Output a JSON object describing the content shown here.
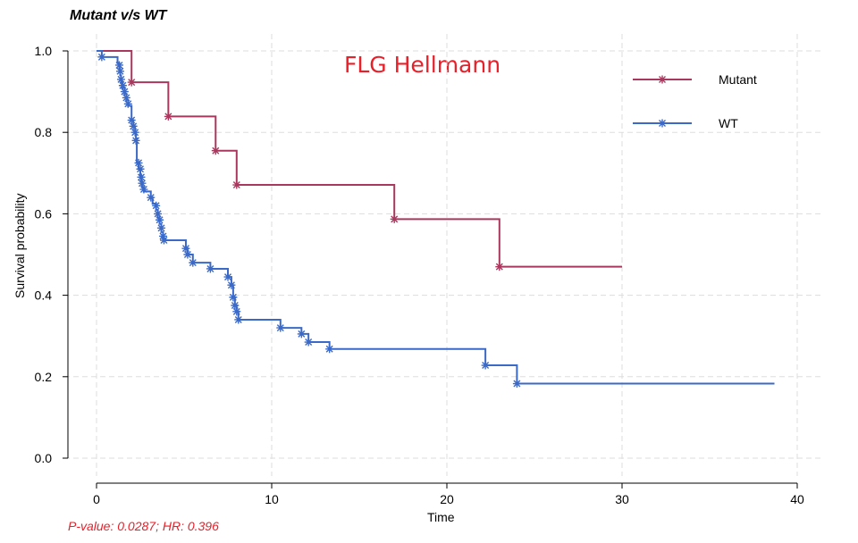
{
  "chart_data": {
    "type": "line",
    "title": "Mutant v/s WT",
    "annotation": "FLG Hellmann",
    "footnote": "P-value: 0.0287; HR: 0.396",
    "xlabel": "Time",
    "ylabel": "Survival probability",
    "xlim": [
      0,
      40
    ],
    "ylim": [
      0,
      1
    ],
    "xticks": [
      0,
      10,
      20,
      30,
      40
    ],
    "yticks": [
      0.0,
      0.2,
      0.4,
      0.6,
      0.8,
      1.0
    ],
    "grid": true,
    "legend_position": "top-right",
    "series": [
      {
        "name": "Mutant",
        "color": "#a8385e",
        "steps": [
          [
            0,
            1.0
          ],
          [
            2.0,
            0.923
          ],
          [
            4.1,
            0.839
          ],
          [
            6.8,
            0.755
          ],
          [
            8.0,
            0.671
          ],
          [
            17.0,
            0.587
          ],
          [
            23.0,
            0.47
          ]
        ],
        "end_x": 30.0,
        "censored": [
          [
            2.0,
            0.923
          ],
          [
            4.1,
            0.839
          ],
          [
            6.8,
            0.755
          ],
          [
            8.0,
            0.671
          ],
          [
            17.0,
            0.587
          ],
          [
            23.0,
            0.47
          ]
        ]
      },
      {
        "name": "WT",
        "color": "#3a69c8",
        "steps": [
          [
            0,
            1.0
          ],
          [
            0.3,
            0.985
          ],
          [
            1.2,
            0.97
          ],
          [
            1.3,
            0.955
          ],
          [
            1.35,
            0.94
          ],
          [
            1.4,
            0.925
          ],
          [
            1.45,
            0.91
          ],
          [
            1.6,
            0.895
          ],
          [
            1.7,
            0.88
          ],
          [
            1.8,
            0.865
          ],
          [
            2.0,
            0.83
          ],
          [
            2.1,
            0.815
          ],
          [
            2.2,
            0.8
          ],
          [
            2.25,
            0.785
          ],
          [
            2.3,
            0.725
          ],
          [
            2.4,
            0.71
          ],
          [
            2.5,
            0.695
          ],
          [
            2.55,
            0.68
          ],
          [
            2.6,
            0.665
          ],
          [
            2.7,
            0.655
          ],
          [
            3.1,
            0.64
          ],
          [
            3.2,
            0.625
          ],
          [
            3.4,
            0.61
          ],
          [
            3.5,
            0.59
          ],
          [
            3.6,
            0.575
          ],
          [
            3.7,
            0.555
          ],
          [
            3.8,
            0.535
          ],
          [
            5.1,
            0.515
          ],
          [
            5.2,
            0.5
          ],
          [
            5.5,
            0.48
          ],
          [
            6.5,
            0.465
          ],
          [
            7.5,
            0.445
          ],
          [
            7.7,
            0.425
          ],
          [
            7.8,
            0.395
          ],
          [
            7.9,
            0.375
          ],
          [
            8.0,
            0.36
          ],
          [
            8.1,
            0.34
          ],
          [
            10.5,
            0.32
          ],
          [
            11.7,
            0.305
          ],
          [
            12.1,
            0.285
          ],
          [
            13.3,
            0.268
          ],
          [
            22.2,
            0.228
          ],
          [
            24.0,
            0.183
          ]
        ],
        "end_x": 38.7,
        "censored": [
          [
            0.3,
            0.985
          ],
          [
            1.3,
            0.965
          ],
          [
            1.35,
            0.95
          ],
          [
            1.4,
            0.93
          ],
          [
            1.5,
            0.915
          ],
          [
            1.6,
            0.9
          ],
          [
            1.7,
            0.885
          ],
          [
            1.8,
            0.87
          ],
          [
            2.0,
            0.83
          ],
          [
            2.1,
            0.815
          ],
          [
            2.2,
            0.8
          ],
          [
            2.25,
            0.78
          ],
          [
            2.4,
            0.725
          ],
          [
            2.5,
            0.71
          ],
          [
            2.55,
            0.69
          ],
          [
            2.6,
            0.675
          ],
          [
            2.7,
            0.66
          ],
          [
            3.1,
            0.64
          ],
          [
            3.4,
            0.62
          ],
          [
            3.5,
            0.6
          ],
          [
            3.6,
            0.585
          ],
          [
            3.7,
            0.565
          ],
          [
            3.8,
            0.545
          ],
          [
            3.85,
            0.535
          ],
          [
            5.1,
            0.515
          ],
          [
            5.2,
            0.5
          ],
          [
            5.5,
            0.48
          ],
          [
            6.5,
            0.465
          ],
          [
            7.5,
            0.445
          ],
          [
            7.7,
            0.425
          ],
          [
            7.8,
            0.395
          ],
          [
            7.9,
            0.375
          ],
          [
            8.0,
            0.36
          ],
          [
            8.1,
            0.34
          ],
          [
            10.5,
            0.32
          ],
          [
            11.7,
            0.305
          ],
          [
            12.1,
            0.285
          ],
          [
            13.3,
            0.268
          ],
          [
            22.2,
            0.228
          ],
          [
            24.0,
            0.183
          ]
        ]
      }
    ]
  }
}
